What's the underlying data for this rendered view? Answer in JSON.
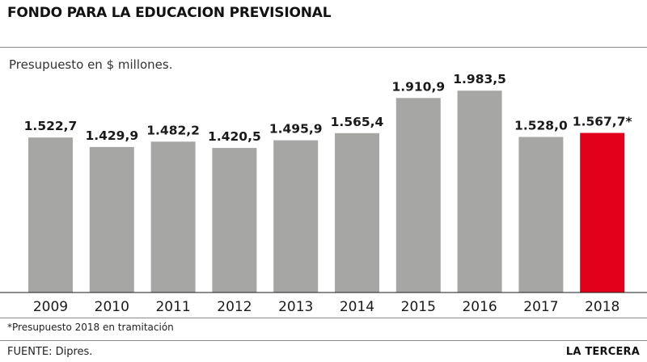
{
  "header": {
    "title": "FONDO PARA LA EDUCACION PREVISIONAL"
  },
  "chart_data": {
    "type": "bar",
    "title": "FONDO PARA LA EDUCACION PREVISIONAL",
    "subtitle": "Presupuesto en $ millones.",
    "categories": [
      "2009",
      "2010",
      "2011",
      "2012",
      "2013",
      "2014",
      "2015",
      "2016",
      "2017",
      "2018"
    ],
    "values": [
      1522.7,
      1429.9,
      1482.2,
      1420.5,
      1495.9,
      1565.4,
      1910.9,
      1983.5,
      1528.0,
      1567.7
    ],
    "value_labels": [
      "1.522,7",
      "1.429,9",
      "1.482,2",
      "1.420,5",
      "1.495,9",
      "1.565,4",
      "1.910,9",
      "1.983,5",
      "1.528,0",
      "1.567,7*"
    ],
    "xlabel": "",
    "ylabel": "",
    "ylim": [
      0,
      2080
    ],
    "grid": false,
    "legend": "none",
    "bar_color": "#a6a6a4",
    "highlight_color": "#e3001b",
    "highlight_index": 9
  },
  "footer": {
    "footnote": "*Presupuesto 2018 en tramitación",
    "source": "FUENTE: Dipres.",
    "brand": "LA TERCERA"
  }
}
